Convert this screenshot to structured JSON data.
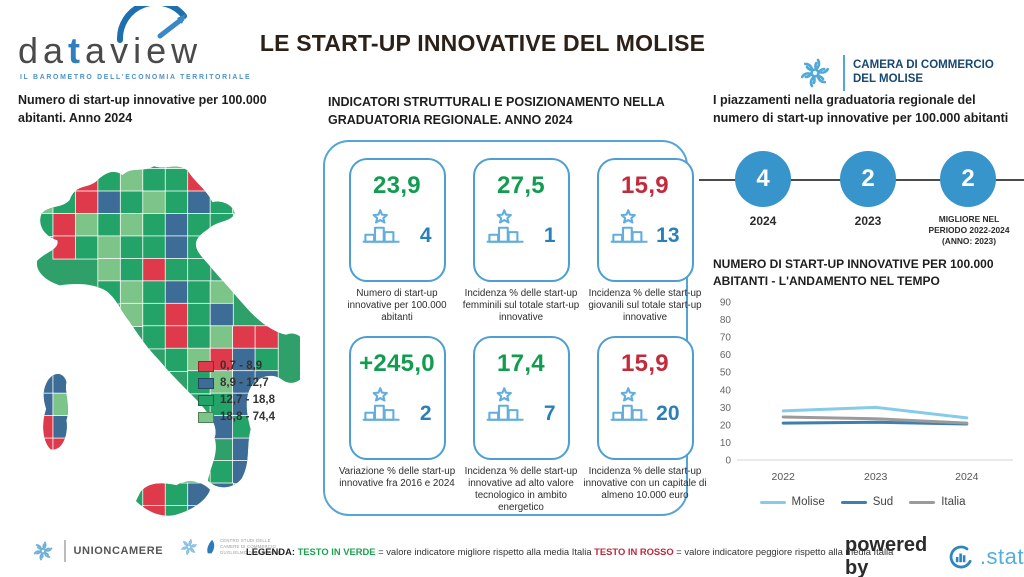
{
  "header": {
    "logo": {
      "word_prefix": "da",
      "word_t": "t",
      "word_suffix": "aview",
      "subtitle": "IL BAROMETRO DELL'ECONOMIA TERRITORIALE"
    },
    "title": "LE START-UP INNOVATIVE DEL MOLISE",
    "chamber": {
      "line1": "CAMERA DI COMMERCIO",
      "line2": "DEL MOLISE"
    }
  },
  "map_section": {
    "heading": "Numero di start-up innovative per 100.000 abitanti. Anno 2024",
    "type": "choropleth-italy-provinces",
    "legend": [
      {
        "label": "0,7 - 8,9",
        "color": "#df3a4c"
      },
      {
        "label": "8,9 - 12,7",
        "color": "#3d6d96"
      },
      {
        "label": "12,7 - 18,8",
        "color": "#23a368"
      },
      {
        "label": "18,8 - 74,4",
        "color": "#7cc487"
      }
    ],
    "palette": {
      "r": "#df3a4c",
      "b": "#3d6d96",
      "g": "#23a368",
      "l": "#7cc487"
    },
    "mosaic_rows": [
      "..glgrglg....",
      ".bgrglggrg...",
      ".lgrbglgbgl..",
      ".grlglgbgg...",
      "..rglggbg....",
      "....lgrgg....",
      "....glgbgl...",
      ".....lgrgb...",
      "......grglrr.",
      ".......glrbg.",
      ".bb.....glbb.",
      ".bl......gb..",
      ".rb......bg..",
      ".rr.......b..",
      ".........gb..",
      ".....grgbb...",
      "......rgb...."
    ]
  },
  "indicators_section": {
    "heading": "INDICATORI STRUTTURALI E POSIZIONAMENTO NELLA GRADUATORIA REGIONALE. ANNO 2024",
    "cards": [
      {
        "value": "23,9",
        "value_color": "#119c50",
        "rank": "4",
        "caption": "Numero di start-up innovative per 100.000 abitanti"
      },
      {
        "value": "27,5",
        "value_color": "#119c50",
        "rank": "1",
        "caption": "Incidenza % delle start-up femminili sul totale start-up innovative"
      },
      {
        "value": "15,9",
        "value_color": "#c22b3c",
        "rank": "13",
        "caption": "Incidenza % delle start-up giovanili sul totale start-up innovative"
      },
      {
        "value": "+245,0",
        "value_color": "#119c50",
        "rank": "2",
        "caption": "Variazione % delle start-up innovative fra 2016 e 2024"
      },
      {
        "value": "17,4",
        "value_color": "#119c50",
        "rank": "7",
        "caption": "Incidenza % delle start-up innovative ad alto valore tecnologico in ambito energetico"
      },
      {
        "value": "15,9",
        "value_color": "#c22b3c",
        "rank": "20",
        "caption": "Incidenza % delle start-up innovative con un capitale di almeno 10.000 euro"
      }
    ]
  },
  "ranking_section": {
    "heading": "I piazzamenti nella graduatoria regionale del numero di start-up innovative per 100.000 abitanti",
    "circles": [
      {
        "value": "4",
        "label": "2024"
      },
      {
        "value": "2",
        "label": "2023"
      },
      {
        "value": "2",
        "label": "MIGLIORE NEL PERIODO 2022-2024 (ANNO: 2023)"
      }
    ]
  },
  "chart_data": {
    "type": "line",
    "title": "NUMERO DI START-UP INNOVATIVE PER 100.000 ABITANTI - L'ANDAMENTO NEL TEMPO",
    "x": [
      "2022",
      "2023",
      "2024"
    ],
    "series": [
      {
        "name": "Molise",
        "color": "#86cbe8",
        "values": [
          28,
          30,
          24
        ]
      },
      {
        "name": "Sud",
        "color": "#3e7fae",
        "values": [
          21,
          21.5,
          20.5
        ]
      },
      {
        "name": "Italia",
        "color": "#9b9b9b",
        "values": [
          24.5,
          23.5,
          21
        ]
      }
    ],
    "ylim": [
      0,
      90
    ],
    "yticks": [
      0,
      10,
      20,
      30,
      40,
      50,
      60,
      70,
      80,
      90
    ],
    "xlabel": "",
    "ylabel": "",
    "grid": false,
    "legend_position": "bottom"
  },
  "footer": {
    "unioncamere": "UNIONCAMERE",
    "tagliacarne_lines": [
      "Centro Studi delle",
      "Camere di Commercio",
      "Guglielmo Tagliacarne"
    ],
    "legend_label": "LEGENDA:",
    "green_term": "TESTO IN VERDE",
    "green_def": "= valore indicatore migliore rispetto alla media Italia",
    "red_term": "TESTO IN ROSSO",
    "red_def": "= valore indicatore peggiore rispetto alla media Italia",
    "powered_by": "powered by",
    "stat_label": ".stat"
  }
}
